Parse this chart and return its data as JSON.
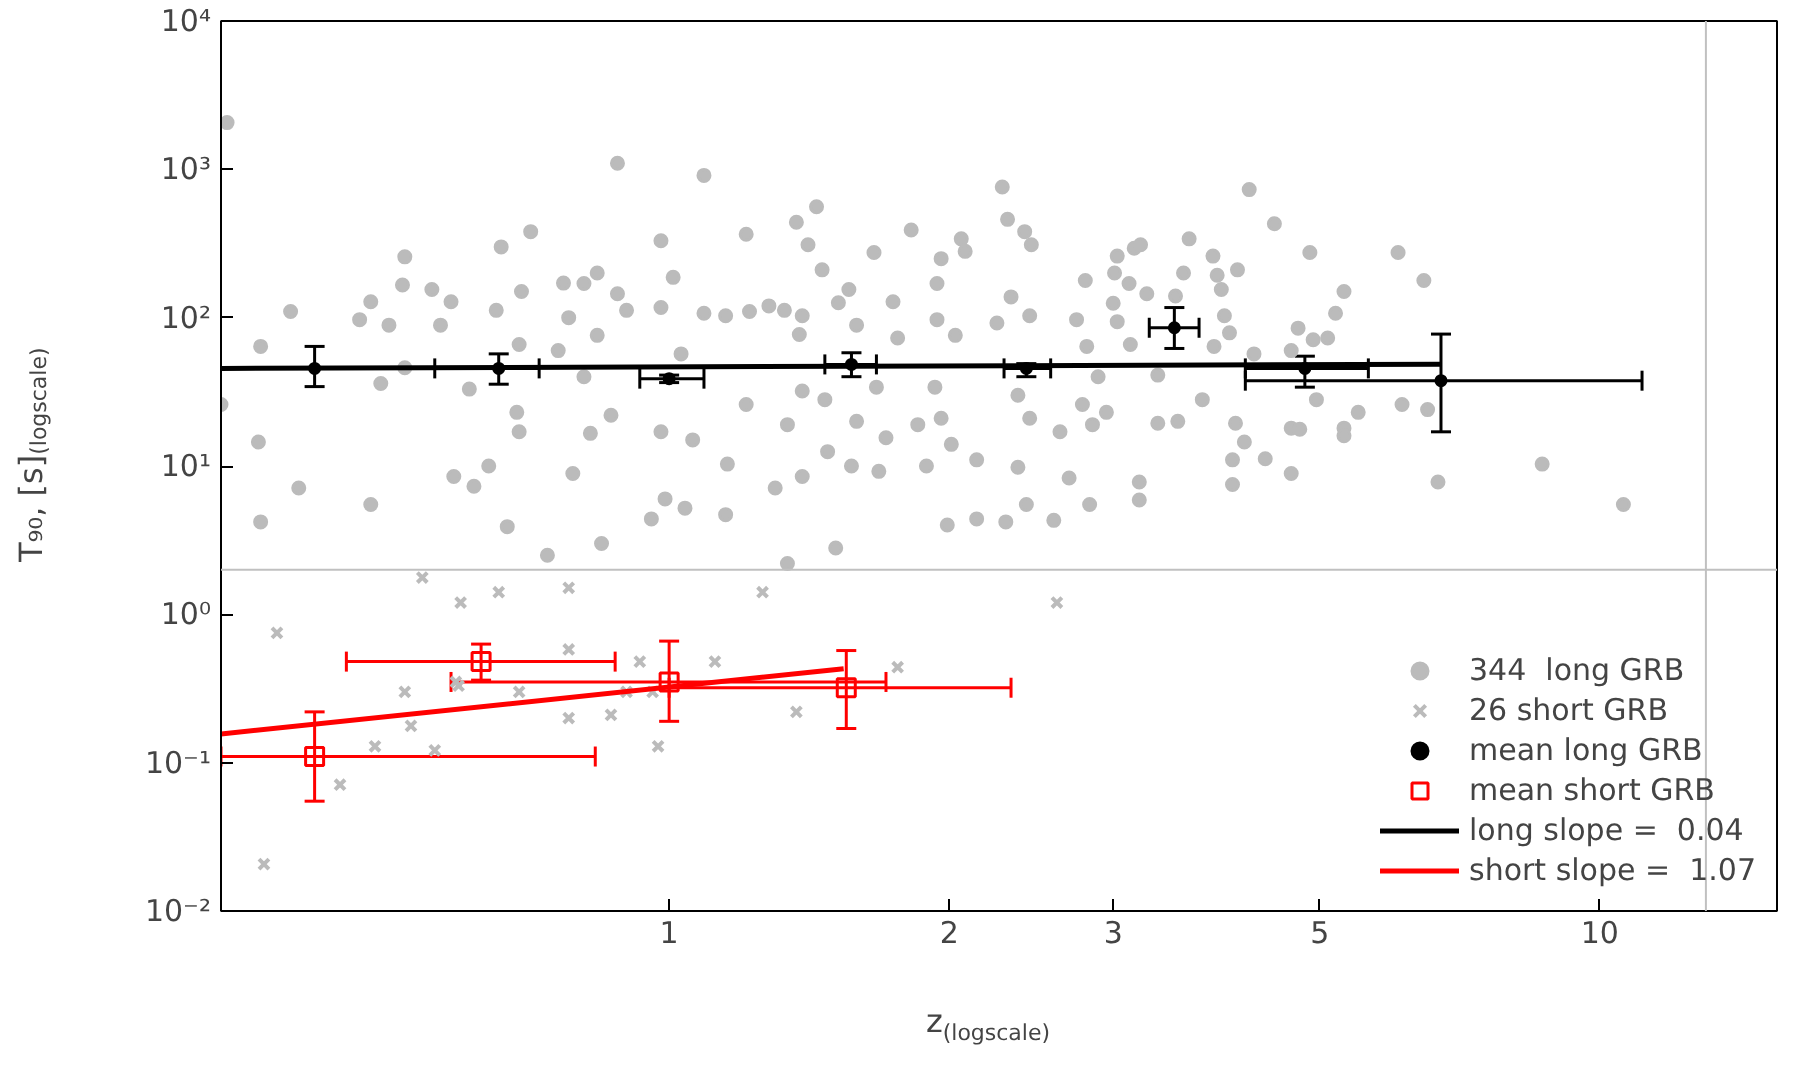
{
  "chart_data": {
    "type": "scatter",
    "xlabel": "z$_{(logscale)}$",
    "ylabel": "T₉₀, [s]$_{(logscale)}$",
    "log": "xy",
    "grid": false,
    "legend": "bottom right",
    "xlim": [
      0.33,
      15.5
    ],
    "ylim": [
      0.01,
      10000
    ],
    "xticks": [
      1,
      2,
      3,
      5,
      10
    ],
    "yticks": [
      {
        "value": 0.01,
        "label": "10⁻²"
      },
      {
        "value": 0.1,
        "label": "10⁻¹"
      },
      {
        "value": 1,
        "label": "10⁰"
      },
      {
        "value": 10,
        "label": "10¹"
      },
      {
        "value": 100,
        "label": "10²"
      },
      {
        "value": 1000,
        "label": "10³"
      },
      {
        "value": 10000,
        "label": "10⁴"
      }
    ],
    "ref_lines": [
      {
        "axis": "x",
        "value": 13,
        "color": "#c0c0c0"
      },
      {
        "axis": "y",
        "value": 2,
        "color": "#c0c0c0"
      }
    ],
    "series": [
      {
        "name": "344  long GRB",
        "marker": "circle",
        "color": "#bbbbbb",
        "x": [
          0.335,
          0.88,
          1.09,
          2.28,
          4.2,
          4.47,
          0.364,
          0.392,
          0.362,
          0.4,
          0.364,
          0.33,
          0.478,
          0.465,
          0.52,
          0.517,
          0.5,
          0.49,
          0.478,
          0.556,
          0.583,
          0.568,
          0.52,
          0.66,
          0.71,
          0.652,
          0.694,
          0.69,
          0.61,
          0.686,
          0.69,
          0.64,
          0.587,
          0.617,
          0.67,
          0.77,
          0.81,
          0.837,
          0.78,
          0.76,
          0.837,
          0.88,
          0.9,
          0.81,
          0.866,
          0.823,
          0.788,
          0.846,
          0.74,
          0.98,
          1.01,
          0.98,
          1.09,
          1.03,
          0.98,
          1.06,
          0.99,
          1.04,
          0.957,
          1.15,
          1.21,
          1.22,
          1.28,
          1.155,
          1.21,
          1.15,
          1.3,
          1.37,
          1.44,
          1.41,
          1.33,
          1.39,
          1.38,
          1.46,
          1.52,
          1.56,
          1.39,
          1.47,
          1.34,
          1.39,
          1.48,
          1.51,
          1.34,
          1.66,
          1.82,
          1.74,
          1.59,
          1.76,
          1.67,
          1.59,
          1.71,
          1.68,
          1.57,
          1.94,
          1.96,
          2.06,
          2.08,
          1.94,
          2.03,
          1.93,
          1.96,
          1.85,
          2.01,
          1.89,
          2.14,
          1.99,
          2.14,
          2.3,
          2.31,
          2.45,
          2.41,
          2.33,
          2.25,
          2.44,
          2.37,
          2.44,
          2.63,
          2.37,
          2.69,
          2.42,
          2.59,
          2.8,
          2.83,
          3.03,
          3.16,
          3.21,
          3.01,
          3.12,
          3.26,
          3.0,
          3.03,
          3.13,
          2.81,
          2.74,
          2.89,
          2.78,
          2.95,
          2.85,
          3.35,
          3.35,
          3.52,
          3.5,
          3.62,
          3.57,
          3.84,
          3.88,
          4.08,
          3.92,
          3.95,
          4.0,
          3.74,
          3.85,
          4.06,
          4.15,
          4.03,
          4.03,
          4.37,
          4.66,
          3.2,
          3.2,
          4.25,
          4.66,
          4.74,
          4.92,
          5.1,
          4.88,
          5.31,
          5.2,
          4.96,
          4.66,
          4.76,
          5.31,
          5.31,
          5.5,
          6.07,
          6.47,
          6.13,
          6.53,
          6.7,
          8.67,
          10.6
        ],
        "values": [
          2065,
          1100,
          910,
          760,
          730,
          430,
          64,
          110,
          14.5,
          7.1,
          4.2,
          26,
          128,
          97,
          257,
          166,
          89,
          36,
          5.5,
          155,
          128,
          89,
          46,
          300,
          380,
          112,
          150,
          66,
          33,
          23,
          17,
          10,
          8.5,
          7.3,
          3.9,
          171,
          170,
          200,
          100,
          60,
          76,
          145,
          112,
          40,
          22,
          16.6,
          8.9,
          3.0,
          2.5,
          330,
          187,
          117,
          107,
          57,
          17,
          15,
          6.0,
          5.2,
          4.4,
          103,
          365,
          110,
          120,
          10.3,
          26,
          4.7,
          7.1,
          440,
          560,
          310,
          112,
          103,
          77,
          210,
          126,
          155,
          32,
          28,
          19,
          8.5,
          12.5,
          2.8,
          2.2,
          275,
          390,
          128,
          89,
          73,
          34,
          20,
          15.5,
          9.2,
          10,
          97,
          250,
          340,
          280,
          170,
          76,
          34,
          21,
          19,
          14,
          10,
          11,
          4.0,
          4.4,
          4.2,
          460,
          310,
          380,
          138,
          92,
          103,
          30,
          21,
          17,
          9.8,
          8.3,
          5.5,
          4.3,
          178,
          5.5,
          260,
          294,
          310,
          200,
          170,
          145,
          125,
          94,
          66,
          64,
          97,
          40,
          26,
          23,
          19,
          41,
          19.4,
          20,
          140,
          340,
          200,
          260,
          193,
          210,
          155,
          103,
          79,
          28,
          64,
          19.4,
          14.5,
          11,
          7.5,
          11.2,
          8.9,
          7.8,
          5.9,
          57,
          60,
          85,
          71,
          73,
          275,
          150,
          107,
          28,
          18,
          17.7,
          18,
          16,
          23,
          275,
          178,
          26,
          24,
          7.8,
          10.3,
          5.5
        ]
      },
      {
        "name": "26 short GRB",
        "marker": "cross",
        "color": "#bbbbbb",
        "x": [
          0.543,
          0.597,
          0.656,
          0.78,
          1.26,
          2.61,
          0.379,
          0.78,
          0.93,
          1.12,
          1.76,
          0.52,
          0.594,
          0.69,
          0.9,
          0.96,
          0.59,
          0.528,
          0.78,
          0.866,
          1.37,
          0.483,
          0.56,
          0.973,
          0.443,
          0.367
        ],
        "values": [
          1.77,
          1.2,
          1.41,
          1.51,
          1.41,
          1.2,
          0.75,
          0.58,
          0.48,
          0.48,
          0.44,
          0.3,
          0.33,
          0.3,
          0.3,
          0.3,
          0.35,
          0.177,
          0.2,
          0.21,
          0.22,
          0.129,
          0.121,
          0.129,
          0.071,
          0.0207
        ]
      },
      {
        "name": "mean long GRB",
        "marker": "circle",
        "color": "#000000",
        "x": [
          0.416,
          0.656,
          1.0,
          1.57,
          2.42,
          3.49,
          4.82,
          6.75
        ],
        "values": [
          45.5,
          45.5,
          38.8,
          48.4,
          45.5,
          85.5,
          45.5,
          37.6
        ],
        "errors": [
          [
            34.3,
            64
          ],
          [
            35.6,
            57
          ],
          [
            36.5,
            41
          ],
          [
            40,
            58
          ],
          [
            40,
            49
          ],
          [
            62,
            117
          ],
          [
            34,
            55
          ],
          [
            17,
            77.5
          ]
        ],
        "xerrors": [
          null,
          [
            0.56,
            0.725
          ],
          [
            0.93,
            1.09
          ],
          [
            1.47,
            1.67
          ],
          [
            2.29,
            2.57
          ],
          [
            3.28,
            3.71
          ],
          [
            4.16,
            5.64
          ],
          [
            4.16,
            11.1
          ]
        ]
      },
      {
        "name": "mean short GRB",
        "marker": "square",
        "color": "#ff0000",
        "x": [
          0.416,
          0.628,
          1.0,
          1.55
        ],
        "values": [
          0.11,
          0.48,
          0.35,
          0.32
        ],
        "errors": [
          [
            0.055,
            0.22
          ],
          [
            0.36,
            0.63
          ],
          [
            0.19,
            0.66
          ],
          [
            0.17,
            0.57
          ]
        ],
        "xerrors": [
          [
            0.33,
            0.833
          ],
          [
            0.45,
            0.875
          ],
          [
            0.583,
            1.71
          ],
          [
            1.0,
            2.33
          ]
        ]
      },
      {
        "name": "long slope =  0.04",
        "type": "line",
        "color": "#000000",
        "x": [
          0.33,
          6.75
        ],
        "values": [
          45.5,
          48.5
        ]
      },
      {
        "name": "short slope =  1.07",
        "type": "line",
        "color": "#ff0000",
        "x": [
          0.33,
          1.54
        ],
        "values": [
          0.156,
          0.43
        ]
      }
    ]
  }
}
